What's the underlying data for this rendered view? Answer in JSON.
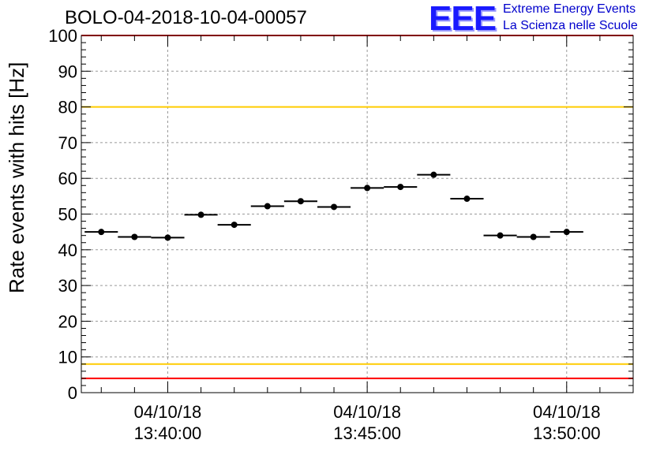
{
  "chart_data": {
    "type": "scatter",
    "title": "BOLO-04-2018-10-04-00057",
    "xlabel": "",
    "ylabel": "Rate events with hits [Hz]",
    "ylim": [
      0,
      100
    ],
    "yticks": [
      "0",
      "10",
      "20",
      "30",
      "40",
      "50",
      "60",
      "70",
      "80",
      "90",
      "100"
    ],
    "xticks": [
      {
        "date": "04/10/18",
        "time": "13:40:00"
      },
      {
        "date": "04/10/18",
        "time": "13:45:00"
      },
      {
        "date": "04/10/18",
        "time": "13:50:00"
      }
    ],
    "x_range": [
      "13:37:50",
      "13:51:40"
    ],
    "x": [
      "13:38:20",
      "13:39:10",
      "13:40:00",
      "13:40:50",
      "13:41:40",
      "13:42:30",
      "13:43:20",
      "13:44:10",
      "13:45:00",
      "13:45:50",
      "13:46:40",
      "13:47:30",
      "13:48:20",
      "13:49:10",
      "13:50:00"
    ],
    "x_error_halfwidth_sec": 25,
    "values": [
      45.0,
      43.6,
      43.4,
      49.8,
      47.0,
      52.2,
      53.6,
      52.0,
      57.3,
      57.6,
      61.0,
      54.3,
      44.0,
      43.6,
      45.0
    ],
    "reference_lines": [
      {
        "y": 80,
        "color": "#ffcc00"
      },
      {
        "y": 8,
        "color": "#ffcc00"
      },
      {
        "y": 4,
        "color": "#ff0000"
      },
      {
        "y": 100,
        "color": "#ff0000"
      }
    ],
    "grid": true,
    "marker_color": "#000000"
  },
  "logo": {
    "mark": "EEE",
    "line1": "Extreme Energy Events",
    "line2": "La Scienza nelle Scuole"
  }
}
